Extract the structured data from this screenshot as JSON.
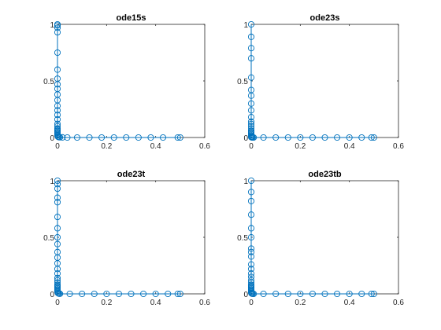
{
  "figure": {
    "background": "#ffffff",
    "axis_color": "#262626",
    "line_color": "#0072bd"
  },
  "chart_data": [
    {
      "type": "line",
      "marker": "circle",
      "title": "ode15s",
      "xlabel": "",
      "ylabel": "",
      "xlim": [
        0,
        0.6
      ],
      "ylim": [
        0,
        1
      ],
      "xticks": [
        "0",
        "0.2",
        "0.4",
        "0.6"
      ],
      "yticks": [
        "0",
        "0.5",
        "1"
      ],
      "grid": false,
      "series": [
        {
          "x": [
            0,
            0,
            0,
            0,
            0,
            0,
            0,
            0,
            0,
            0,
            0,
            0,
            0,
            0,
            0,
            0,
            0,
            0,
            0,
            0,
            0,
            0,
            0,
            0,
            0.001,
            0.003,
            0.006,
            0.01,
            0.02,
            0.04,
            0.08,
            0.13,
            0.18,
            0.23,
            0.28,
            0.33,
            0.38,
            0.43,
            0.49,
            0.5
          ],
          "y": [
            1,
            0.99,
            0.97,
            0.93,
            0.75,
            0.6,
            0.52,
            0.47,
            0.43,
            0.38,
            0.33,
            0.28,
            0.24,
            0.2,
            0.16,
            0.12,
            0.1,
            0.08,
            0.07,
            0.06,
            0.05,
            0.04,
            0.03,
            0.02,
            0.01,
            0.005,
            0.003,
            0.002,
            0.001,
            0,
            0,
            0,
            0,
            0,
            0,
            0,
            0,
            0,
            0,
            0
          ]
        }
      ]
    },
    {
      "type": "line",
      "marker": "circle",
      "title": "ode23s",
      "xlabel": "",
      "ylabel": "",
      "xlim": [
        0,
        0.6
      ],
      "ylim": [
        0,
        1
      ],
      "xticks": [
        "0",
        "0.2",
        "0.4",
        "0.6"
      ],
      "yticks": [
        "0",
        "0.5",
        "1"
      ],
      "grid": false,
      "series": [
        {
          "x": [
            0,
            0,
            0,
            0,
            0,
            0,
            0,
            0,
            0,
            0,
            0,
            0,
            0,
            0,
            0,
            0,
            0,
            0,
            0,
            0,
            0,
            0.001,
            0.003,
            0.006,
            0.01,
            0.05,
            0.1,
            0.15,
            0.2,
            0.25,
            0.3,
            0.35,
            0.4,
            0.45,
            0.49,
            0.5
          ],
          "y": [
            1,
            0.89,
            0.79,
            0.7,
            0.53,
            0.42,
            0.37,
            0.3,
            0.24,
            0.18,
            0.14,
            0.12,
            0.1,
            0.08,
            0.06,
            0.05,
            0.04,
            0.03,
            0.02,
            0.01,
            0.005,
            0.002,
            0.001,
            0,
            0,
            0,
            0,
            0,
            0,
            0,
            0,
            0,
            0,
            0,
            0,
            0
          ]
        }
      ]
    },
    {
      "type": "line",
      "marker": "circle",
      "title": "ode23t",
      "xlabel": "",
      "ylabel": "",
      "xlim": [
        0,
        0.6
      ],
      "ylim": [
        0,
        1
      ],
      "xticks": [
        "0",
        "0.2",
        "0.4",
        "0.6"
      ],
      "yticks": [
        "0",
        "0.5",
        "1"
      ],
      "grid": false,
      "series": [
        {
          "x": [
            0,
            0,
            0,
            0,
            0,
            0,
            0,
            0,
            0,
            0,
            0,
            0,
            0,
            0,
            0,
            0,
            0,
            0,
            0,
            0,
            0,
            0,
            0,
            0,
            0.001,
            0.003,
            0.006,
            0.01,
            0.05,
            0.1,
            0.15,
            0.2,
            0.25,
            0.3,
            0.35,
            0.4,
            0.45,
            0.49,
            0.5
          ],
          "y": [
            1,
            0.97,
            0.93,
            0.85,
            0.81,
            0.68,
            0.58,
            0.5,
            0.44,
            0.37,
            0.32,
            0.27,
            0.22,
            0.18,
            0.14,
            0.12,
            0.1,
            0.08,
            0.07,
            0.06,
            0.05,
            0.04,
            0.03,
            0.02,
            0.01,
            0.005,
            0.002,
            0.001,
            0,
            0,
            0,
            0,
            0,
            0,
            0,
            0,
            0,
            0,
            0
          ]
        }
      ]
    },
    {
      "type": "line",
      "marker": "circle",
      "title": "ode23tb",
      "xlabel": "",
      "ylabel": "",
      "xlim": [
        0,
        0.6
      ],
      "ylim": [
        0,
        1
      ],
      "xticks": [
        "0",
        "0.2",
        "0.4",
        "0.6"
      ],
      "yticks": [
        "0",
        "0.5",
        "1"
      ],
      "grid": false,
      "series": [
        {
          "x": [
            0,
            0,
            0,
            0,
            0,
            0,
            0,
            0,
            0,
            0,
            0,
            0,
            0,
            0,
            0,
            0,
            0,
            0,
            0,
            0,
            0,
            0,
            0,
            0.001,
            0.003,
            0.006,
            0.01,
            0.05,
            0.1,
            0.15,
            0.2,
            0.25,
            0.3,
            0.35,
            0.4,
            0.45,
            0.49,
            0.5
          ],
          "y": [
            1,
            0.9,
            0.82,
            0.7,
            0.58,
            0.5,
            0.4,
            0.37,
            0.33,
            0.26,
            0.22,
            0.18,
            0.15,
            0.12,
            0.1,
            0.08,
            0.07,
            0.06,
            0.05,
            0.04,
            0.03,
            0.02,
            0.01,
            0.005,
            0.002,
            0.001,
            0,
            0,
            0,
            0,
            0,
            0,
            0,
            0,
            0,
            0,
            0,
            0
          ]
        }
      ]
    }
  ]
}
